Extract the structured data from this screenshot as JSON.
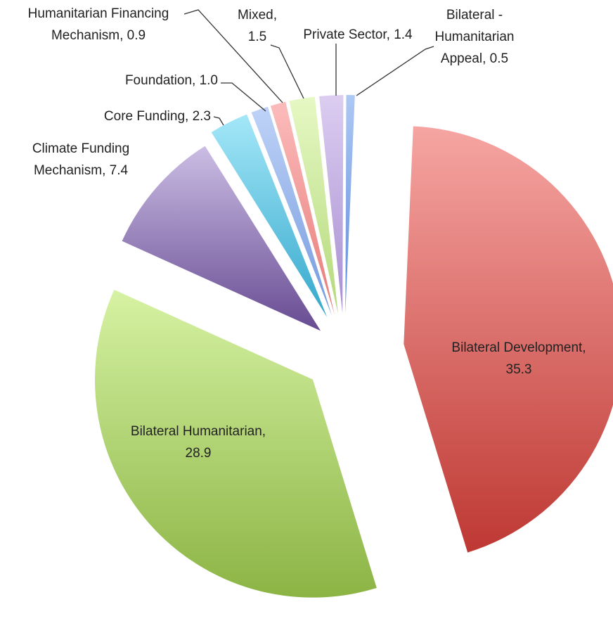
{
  "chart_data": {
    "type": "pie",
    "values": [
      35.3,
      28.9,
      7.4,
      2.3,
      1.0,
      0.9,
      1.5,
      1.4,
      0.5
    ],
    "value_labels": [
      "Bilateral Development,\n35.3",
      "Bilateral Humanitarian,\n28.9",
      "Climate Funding\nMechanism, 7.4",
      "Core Funding, 2.3",
      "Foundation, 1.0",
      "Humanitarian Financing\nMechanism, 0.9",
      "Mixed,\n1.5",
      "Private Sector, 1.4",
      "Bilateral -\nHumanitarian\nAppeal, 0.5"
    ],
    "colors": [
      [
        "#f6a5a2",
        "#be3833"
      ],
      [
        "#d6f2a3",
        "#8bb444"
      ],
      [
        "#cbbde4",
        "#674b92"
      ],
      [
        "#a4e7f8",
        "#35a8cc"
      ],
      [
        "#bfd3f7",
        "#7399de"
      ],
      [
        "#fbbcbb",
        "#e77b79"
      ],
      [
        "#e6f8c4",
        "#b3d97a"
      ],
      [
        "#dccdf1",
        "#a78fd0"
      ],
      [
        "#adc8f4",
        "#5f8cdc"
      ]
    ]
  }
}
